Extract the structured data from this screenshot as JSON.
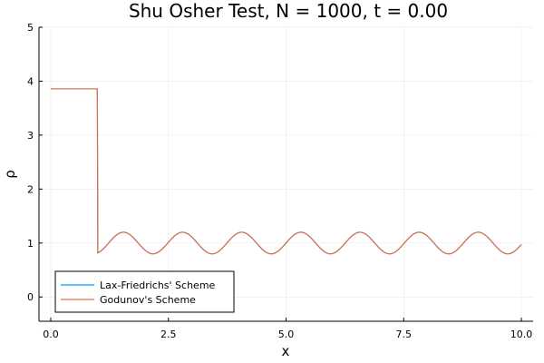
{
  "chart_data": {
    "type": "line",
    "title": "Shu Osher Test, N = 1000, t = 0.00",
    "xlabel": "x",
    "ylabel": "ρ",
    "xlim": [
      -0.25,
      10.25
    ],
    "ylim": [
      -0.45,
      5.0
    ],
    "xticks": [
      0.0,
      2.5,
      5.0,
      7.5,
      10.0
    ],
    "xtick_labels": [
      "0.0",
      "2.5",
      "5.0",
      "7.5",
      "10.0"
    ],
    "yticks": [
      0,
      1,
      2,
      3,
      4,
      5
    ],
    "ytick_labels": [
      "0",
      "1",
      "2",
      "3",
      "4",
      "5"
    ],
    "grid": true,
    "legend_position": "bottom-left",
    "initial_condition": {
      "shock_location": 1.0,
      "left_state": 3.857143,
      "right_state": "1 + 0.2*sin(5*(x - 5))",
      "x_range": [
        0,
        10
      ]
    },
    "series": [
      {
        "name": "Lax-Friedrichs' Scheme",
        "color": "#009AFA"
      },
      {
        "name": "Godunov's Scheme",
        "color": "#E26F46"
      }
    ]
  }
}
